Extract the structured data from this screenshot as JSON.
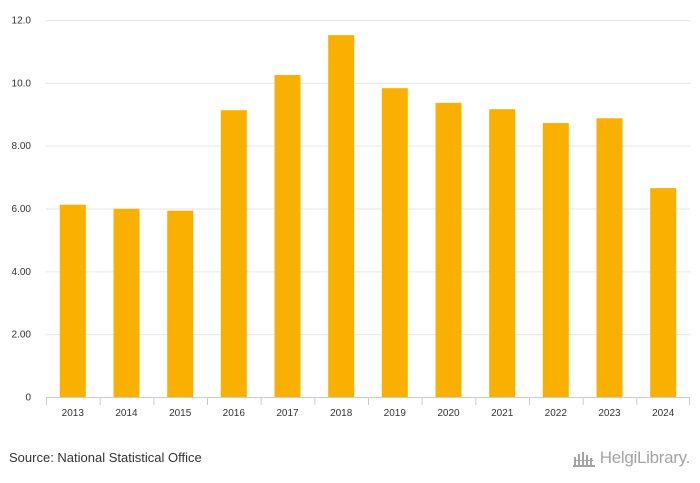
{
  "chart_data": {
    "type": "bar",
    "title": "",
    "xlabel": "",
    "ylabel": "",
    "categories": [
      "2013",
      "2014",
      "2015",
      "2016",
      "2017",
      "2018",
      "2019",
      "2020",
      "2021",
      "2022",
      "2023",
      "2024"
    ],
    "values": [
      6.12,
      5.99,
      5.93,
      9.13,
      10.25,
      11.52,
      9.83,
      9.36,
      9.16,
      8.72,
      8.87,
      6.65
    ],
    "ylim": [
      0,
      12
    ],
    "yticks": [
      {
        "value": 0,
        "label": "0"
      },
      {
        "value": 2,
        "label": "2.00"
      },
      {
        "value": 4,
        "label": "4.00"
      },
      {
        "value": 6,
        "label": "6.00"
      },
      {
        "value": 8,
        "label": "8.00"
      },
      {
        "value": 10,
        "label": "10.0"
      },
      {
        "value": 12,
        "label": "12.0"
      }
    ],
    "grid": true,
    "bar_color": "#f9b000"
  },
  "footer": {
    "source": "Source: National Statistical Office",
    "logo_text": "HelgiLibrary."
  }
}
